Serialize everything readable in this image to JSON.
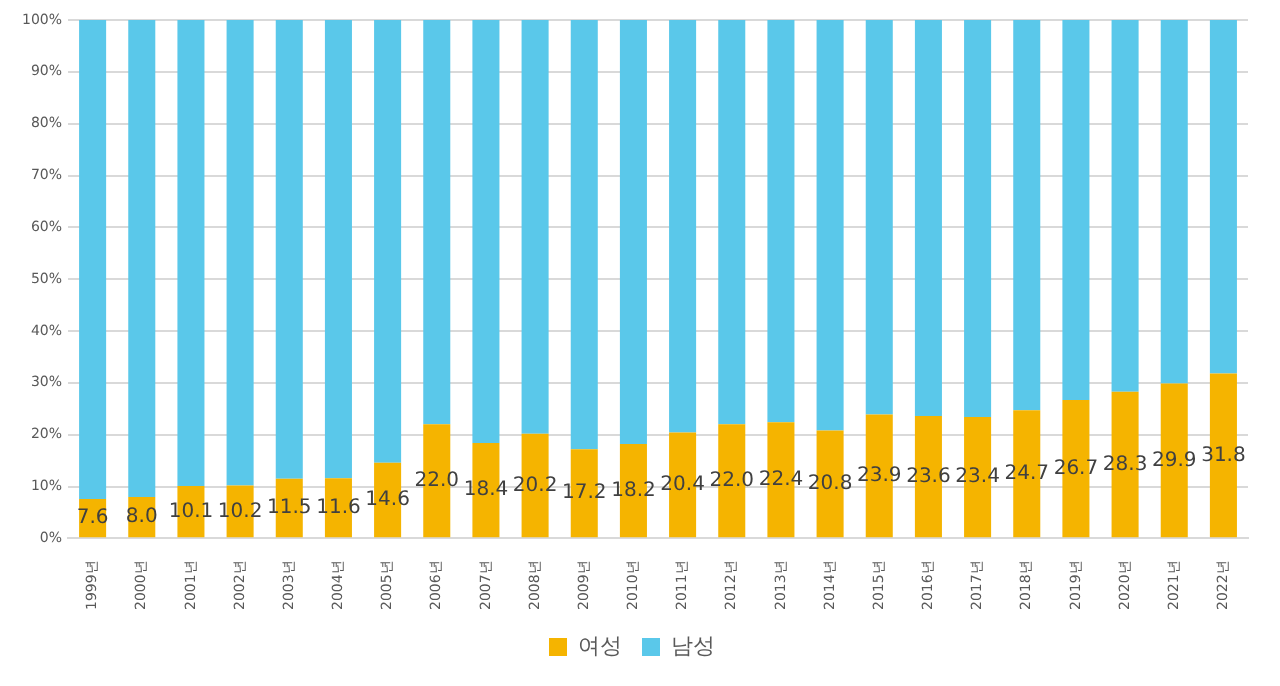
{
  "chart_data": {
    "type": "bar",
    "stacked": true,
    "categories": [
      "1999년",
      "2000년",
      "2001년",
      "2002년",
      "2003년",
      "2004년",
      "2005년",
      "2006년",
      "2007년",
      "2008년",
      "2009년",
      "2010년",
      "2011년",
      "2012년",
      "2013년",
      "2014년",
      "2015년",
      "2016년",
      "2017년",
      "2018년",
      "2019년",
      "2020년",
      "2021년",
      "2022년"
    ],
    "series": [
      {
        "name": "여성",
        "color": "#f5b400",
        "values": [
          7.6,
          8.0,
          10.1,
          10.2,
          11.5,
          11.6,
          14.6,
          22.0,
          18.4,
          20.2,
          17.2,
          18.2,
          20.4,
          22.0,
          22.4,
          20.8,
          23.9,
          23.6,
          23.4,
          24.7,
          26.7,
          28.3,
          29.9,
          31.8
        ],
        "value_labels": [
          "7.6",
          "8.0",
          "10.1",
          "10.2",
          "11.5",
          "11.6",
          "14.6",
          "22.0",
          "18.4",
          "20.2",
          "17.2",
          "18.2",
          "20.4",
          "22.0",
          "22.4",
          "20.8",
          "23.9",
          "23.6",
          "23.4",
          "24.7",
          "26.7",
          "28.3",
          "29.9",
          "31.8"
        ]
      },
      {
        "name": "남성",
        "color": "#5ac8ea",
        "values": [
          92.4,
          92.0,
          89.9,
          89.8,
          88.5,
          88.4,
          85.4,
          78.0,
          81.6,
          79.8,
          82.8,
          81.8,
          79.6,
          78.0,
          77.6,
          79.2,
          76.1,
          76.4,
          76.6,
          75.3,
          73.3,
          71.7,
          70.1,
          68.2
        ]
      }
    ],
    "ylim": [
      0,
      100
    ],
    "yticks": [
      {
        "value": 0,
        "label": "0%"
      },
      {
        "value": 10,
        "label": "10%"
      },
      {
        "value": 20,
        "label": "20%"
      },
      {
        "value": 30,
        "label": "30%"
      },
      {
        "value": 40,
        "label": "40%"
      },
      {
        "value": 50,
        "label": "50%"
      },
      {
        "value": 60,
        "label": "60%"
      },
      {
        "value": 70,
        "label": "70%"
      },
      {
        "value": 80,
        "label": "80%"
      },
      {
        "value": 90,
        "label": "90%"
      },
      {
        "value": 100,
        "label": "100%"
      }
    ],
    "grid": "y",
    "legend": "bottom"
  }
}
